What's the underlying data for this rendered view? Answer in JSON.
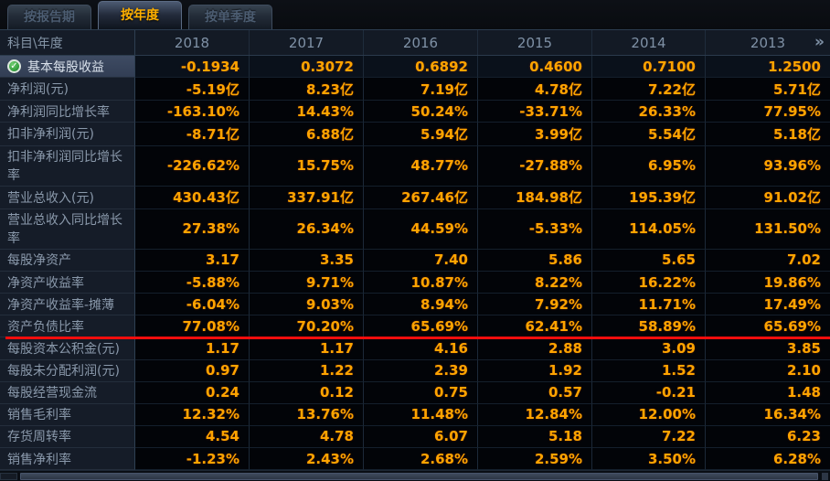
{
  "tabs": [
    {
      "label": "按报告期",
      "active": false
    },
    {
      "label": "按年度",
      "active": true
    },
    {
      "label": "按单季度",
      "active": false
    }
  ],
  "icons": {
    "selected_row_check": "✓",
    "more_years": "»"
  },
  "colors": {
    "value_orange": "#ffa400",
    "active_tab_orange": "#ffb000",
    "marker_red": "#f30d0d",
    "check_green": "#2f9a3a",
    "label_bg": "#151c28",
    "cell_bg": "#020408"
  },
  "table": {
    "corner_header": "科目\\年度",
    "year_columns": [
      "2018",
      "2017",
      "2016",
      "2015",
      "2014",
      "2013"
    ],
    "rows": [
      {
        "label": "基本每股收益",
        "selected": true,
        "red_underline": false,
        "values": [
          "-0.1934",
          "0.3072",
          "0.6892",
          "0.4600",
          "0.7100",
          "1.2500"
        ]
      },
      {
        "label": "净利润(元)",
        "selected": false,
        "red_underline": false,
        "values": [
          "-5.19亿",
          "8.23亿",
          "7.19亿",
          "4.78亿",
          "7.22亿",
          "5.71亿"
        ]
      },
      {
        "label": "净利润同比增长率",
        "selected": false,
        "red_underline": false,
        "values": [
          "-163.10%",
          "14.43%",
          "50.24%",
          "-33.71%",
          "26.33%",
          "77.95%"
        ]
      },
      {
        "label": "扣非净利润(元)",
        "selected": false,
        "red_underline": false,
        "values": [
          "-8.71亿",
          "6.88亿",
          "5.94亿",
          "3.99亿",
          "5.54亿",
          "5.18亿"
        ]
      },
      {
        "label": "扣非净利润同比增长率",
        "selected": false,
        "red_underline": false,
        "values": [
          "-226.62%",
          "15.75%",
          "48.77%",
          "-27.88%",
          "6.95%",
          "93.96%"
        ]
      },
      {
        "label": "营业总收入(元)",
        "selected": false,
        "red_underline": false,
        "values": [
          "430.43亿",
          "337.91亿",
          "267.46亿",
          "184.98亿",
          "195.39亿",
          "91.02亿"
        ]
      },
      {
        "label": "营业总收入同比增长率",
        "selected": false,
        "red_underline": false,
        "values": [
          "27.38%",
          "26.34%",
          "44.59%",
          "-5.33%",
          "114.05%",
          "131.50%"
        ]
      },
      {
        "label": "每股净资产",
        "selected": false,
        "red_underline": false,
        "values": [
          "3.17",
          "3.35",
          "7.40",
          "5.86",
          "5.65",
          "7.02"
        ]
      },
      {
        "label": "净资产收益率",
        "selected": false,
        "red_underline": false,
        "values": [
          "-5.88%",
          "9.71%",
          "10.87%",
          "8.22%",
          "16.22%",
          "19.86%"
        ]
      },
      {
        "label": "净资产收益率-摊薄",
        "selected": false,
        "red_underline": false,
        "values": [
          "-6.04%",
          "9.03%",
          "8.94%",
          "7.92%",
          "11.71%",
          "17.49%"
        ]
      },
      {
        "label": "资产负债比率",
        "selected": false,
        "red_underline": true,
        "values": [
          "77.08%",
          "70.20%",
          "65.69%",
          "62.41%",
          "58.89%",
          "65.69%"
        ]
      },
      {
        "label": "每股资本公积金(元)",
        "selected": false,
        "red_underline": false,
        "values": [
          "1.17",
          "1.17",
          "4.16",
          "2.88",
          "3.09",
          "3.85"
        ]
      },
      {
        "label": "每股未分配利润(元)",
        "selected": false,
        "red_underline": false,
        "values": [
          "0.97",
          "1.22",
          "2.39",
          "1.92",
          "1.52",
          "2.10"
        ]
      },
      {
        "label": "每股经营现金流",
        "selected": false,
        "red_underline": false,
        "values": [
          "0.24",
          "0.12",
          "0.75",
          "0.57",
          "-0.21",
          "1.48"
        ]
      },
      {
        "label": "销售毛利率",
        "selected": false,
        "red_underline": false,
        "values": [
          "12.32%",
          "13.76%",
          "11.48%",
          "12.84%",
          "12.00%",
          "16.34%"
        ]
      },
      {
        "label": "存货周转率",
        "selected": false,
        "red_underline": false,
        "values": [
          "4.54",
          "4.78",
          "6.07",
          "5.18",
          "7.22",
          "6.23"
        ]
      },
      {
        "label": "销售净利率",
        "selected": false,
        "red_underline": false,
        "values": [
          "-1.23%",
          "2.43%",
          "2.68%",
          "2.59%",
          "3.50%",
          "6.28%"
        ]
      }
    ]
  }
}
